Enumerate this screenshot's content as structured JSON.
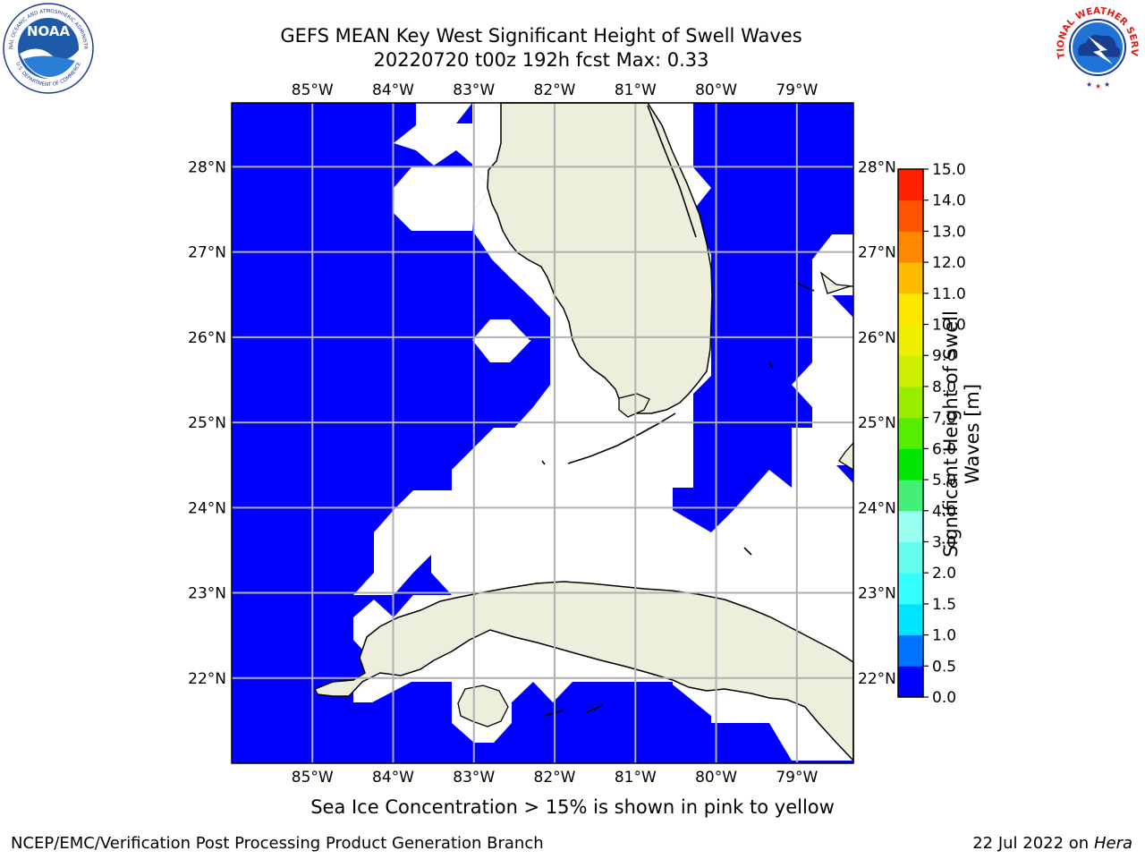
{
  "title": {
    "line1": "GEFS MEAN Key West Significant Height of Swell Waves",
    "line2": "20220720 t00z 192h fcst   Max: 0.33"
  },
  "logos": {
    "noaa_text": "NOAA",
    "noaa_ring_top": "NATIONAL OCEANIC AND ATMOSPHERIC ADMINISTRATION",
    "noaa_ring_bottom": "U.S. DEPARTMENT OF COMMERCE",
    "nws_ring": "NATIONAL WEATHER SERVICE"
  },
  "map": {
    "lon_ticks": [
      "85°W",
      "84°W",
      "83°W",
      "82°W",
      "81°W",
      "80°W",
      "79°W"
    ],
    "lat_ticks": [
      "28°N",
      "27°N",
      "26°N",
      "25°N",
      "24°N",
      "23°N",
      "22°N"
    ],
    "lon_values": [
      -85,
      -84,
      -83,
      -82,
      -81,
      -80,
      -79
    ],
    "lat_values": [
      28,
      27,
      26,
      25,
      24,
      23,
      22
    ],
    "extent": {
      "lon_min": -86.0,
      "lon_max": -78.3,
      "lat_min": 21.0,
      "lat_max": 28.75
    },
    "ocean_color": "#0000ff",
    "land_color": "#eeeedd",
    "gridlines": true
  },
  "colorbar": {
    "title": "Significant Height of Swell Waves [m]",
    "levels": [
      "0.0",
      "0.5",
      "1.0",
      "1.5",
      "2.0",
      "3.0",
      "4.0",
      "5.0",
      "6.0",
      "7.0",
      "8.0",
      "9.0",
      "10.0",
      "11.0",
      "12.0",
      "13.0",
      "14.0",
      "15.0"
    ],
    "colors": [
      "#0000ff",
      "#0073ff",
      "#00e5ff",
      "#33ffff",
      "#66ffee",
      "#99ffee",
      "#44ee77",
      "#00e600",
      "#55ee00",
      "#99ee00",
      "#ccee00",
      "#eeee00",
      "#ffe600",
      "#ffbb00",
      "#ff8800",
      "#ff5500",
      "#ff2200"
    ]
  },
  "note": "Sea Ice Concentration > 15% is shown in pink to yellow",
  "footer": {
    "left": "NCEP/EMC/Verification Post Processing Product Generation Branch",
    "right_date": "22 Jul 2022 on ",
    "right_host": "Hera"
  }
}
